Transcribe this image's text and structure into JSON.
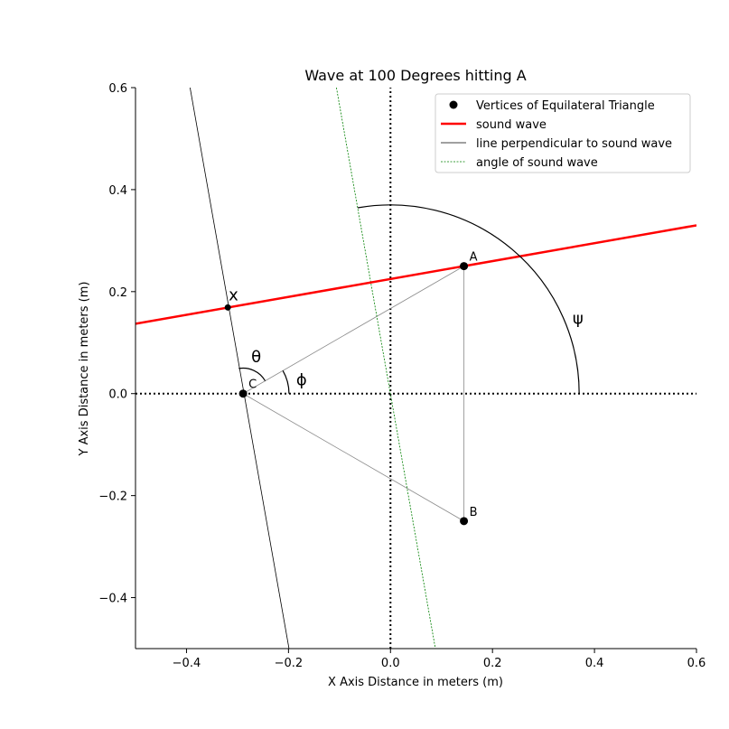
{
  "chart_data": {
    "type": "scatter",
    "title": "Wave at 100 Degrees hitting A",
    "xlabel": "X Axis Distance in meters (m)",
    "ylabel": "Y Axis Distance in meters (m)",
    "xlim": [
      -0.5,
      0.6
    ],
    "ylim": [
      -0.5,
      0.6
    ],
    "xticks": [
      -0.4,
      -0.2,
      0.0,
      0.2,
      0.4,
      0.6
    ],
    "yticks": [
      -0.4,
      -0.2,
      0.0,
      0.2,
      0.4,
      0.6
    ],
    "xtick_labels": [
      "−0.4",
      "−0.2",
      "0.0",
      "0.2",
      "0.4",
      "0.6"
    ],
    "ytick_labels": [
      "−0.4",
      "−0.2",
      "0.0",
      "0.2",
      "0.4",
      "0.6"
    ],
    "grid": false,
    "legend_position": "top-right",
    "vertices": [
      {
        "label": "A",
        "x": 0.144,
        "y": 0.25
      },
      {
        "label": "B",
        "x": 0.144,
        "y": -0.25
      },
      {
        "label": "C",
        "x": -0.289,
        "y": 0.0
      }
    ],
    "intersection_point": {
      "label": "x",
      "x": -0.319,
      "y": 0.169
    },
    "sound_wave": {
      "points": [
        [
          -0.5,
          0.137
        ],
        [
          0.6,
          0.33
        ]
      ],
      "color": "#ff0000"
    },
    "perpendicular_line": {
      "points": [
        [
          -0.393,
          0.6
        ],
        [
          -0.199,
          -0.5
        ]
      ],
      "color": "#000000"
    },
    "wave_angle_line": {
      "points": [
        [
          -0.106,
          0.6
        ],
        [
          0.088,
          -0.5
        ]
      ],
      "color": "#008000"
    },
    "arcs": [
      {
        "label": "θ",
        "center": [
          -0.289,
          0.0
        ],
        "radius": 0.05,
        "start_deg": 30,
        "end_deg": 100
      },
      {
        "label": "ϕ",
        "center": [
          -0.289,
          0.0
        ],
        "radius": 0.09,
        "start_deg": 0,
        "end_deg": 30
      },
      {
        "label": "ψ",
        "center": [
          0.0,
          0.0
        ],
        "radius": 0.37,
        "start_deg": 0,
        "end_deg": 100
      }
    ],
    "arc_label_positions": [
      {
        "label": "θ",
        "x": -0.273,
        "y": 0.072
      },
      {
        "label": "ϕ",
        "x": -0.185,
        "y": 0.027
      },
      {
        "label": "ψ",
        "x": 0.357,
        "y": 0.147
      }
    ],
    "legend": [
      {
        "label": "Vertices of Equilateral Triangle",
        "kind": "marker",
        "color": "#000000"
      },
      {
        "label": "sound wave",
        "kind": "line",
        "color": "#ff0000"
      },
      {
        "label": "line perpendicular to sound wave",
        "kind": "line",
        "color": "#000000"
      },
      {
        "label": "angle of sound wave",
        "kind": "dashed",
        "color": "#008000"
      }
    ]
  }
}
